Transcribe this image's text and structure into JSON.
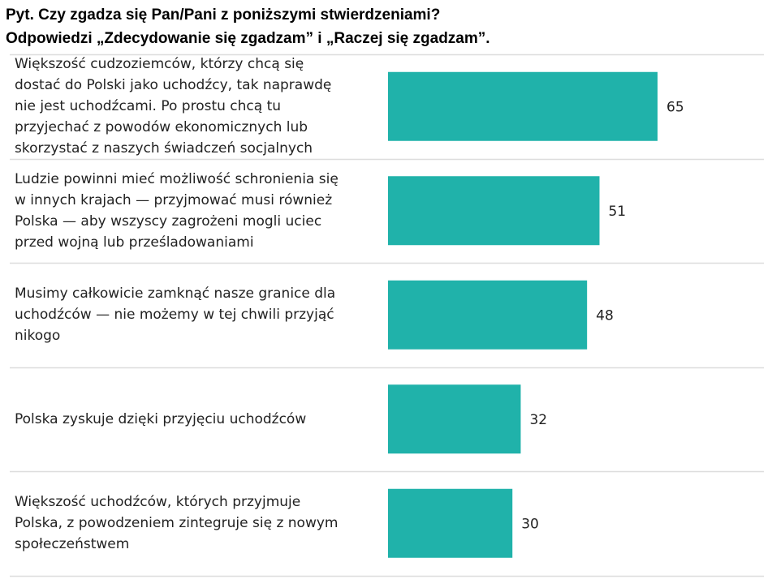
{
  "title": {
    "line1": "Pyt. Czy zgadza się Pan/Pani z poniższymi stwierdzeniami?",
    "line2": "Odpowiedzi „Zdecydowanie się zgadzam” i „Raczej się zgadzam”."
  },
  "chart_data": {
    "type": "bar",
    "orientation": "horizontal",
    "categories": [
      "Większość cudzoziemców, którzy chcą się dostać do Polski jako uchodźcy, tak naprawdę nie jest uchodźcami. Po prostu chcą tu przyjechać z powodów ekonomicznych lub skorzystać z naszych świadczeń socjalnych",
      "Ludzie powinni mieć możliwość schronienia się w innych krajach — przyjmować musi również Polska — aby wszyscy zagrożeni mogli uciec przed wojną lub prześladowaniami",
      "Musimy całkowicie zamknąć nasze granice dla uchodźców — nie możemy w tej chwili przyjąć nikogo",
      "Polska zyskuje dzięki przyjęciu uchodźców",
      "Większość uchodźców, których przyjmuje Polska, z powodzeniem zintegruje się z nowym społeczeństwem"
    ],
    "category_lines": [
      [
        "Większość cudzoziemców, którzy chcą się",
        "dostać do Polski jako uchodźcy, tak naprawdę",
        "nie jest uchodźcami. Po prostu chcą tu",
        "przyjechać z powodów ekonomicznych lub",
        "skorzystać z naszych świadczeń socjalnych"
      ],
      [
        "Ludzie powinni mieć możliwość schronienia się",
        "w innych krajach — przyjmować musi również",
        "Polska — aby wszyscy zagrożeni mogli uciec",
        "przed wojną lub prześladowaniami"
      ],
      [
        "Musimy całkowicie zamknąć nasze granice dla",
        "uchodźców — nie możemy w tej chwili przyjąć",
        "nikogo"
      ],
      [
        "Polska zyskuje dzięki przyjęciu uchodźców"
      ],
      [
        "Większość uchodźców, których przyjmuje",
        "Polska, z powodzeniem zintegruje się z nowym",
        "społeczeństwem"
      ]
    ],
    "values": [
      65,
      51,
      48,
      32,
      30
    ],
    "value_labels": [
      "65",
      "51",
      "48",
      "32",
      "30"
    ],
    "xlim": [
      0,
      100
    ],
    "bar_color": "#20b2aa",
    "separator_color": "#dddddd",
    "grid": false,
    "legend": "none"
  }
}
